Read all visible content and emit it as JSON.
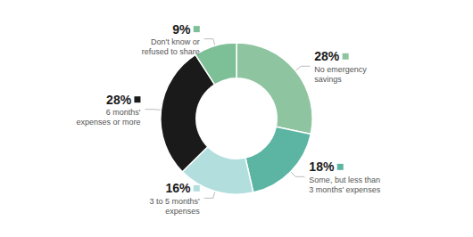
{
  "chart_data": {
    "type": "donut",
    "categories": [
      "No emergency\nsavings",
      "Some, but less than\n3 months' expenses",
      "3 to 5 months'\nexpenses",
      "6 months'\nexpenses or more",
      "Don't know or\nrefused to share"
    ],
    "values": [
      28,
      18,
      16,
      28,
      9
    ],
    "value_labels": [
      "28%",
      "18%",
      "16%",
      "28%",
      "9%"
    ],
    "colors": [
      "#8ec4a0",
      "#5bb5a2",
      "#b2dede",
      "#1a1a1a",
      "#7dbf96"
    ],
    "data_labels": true,
    "legend": false
  }
}
